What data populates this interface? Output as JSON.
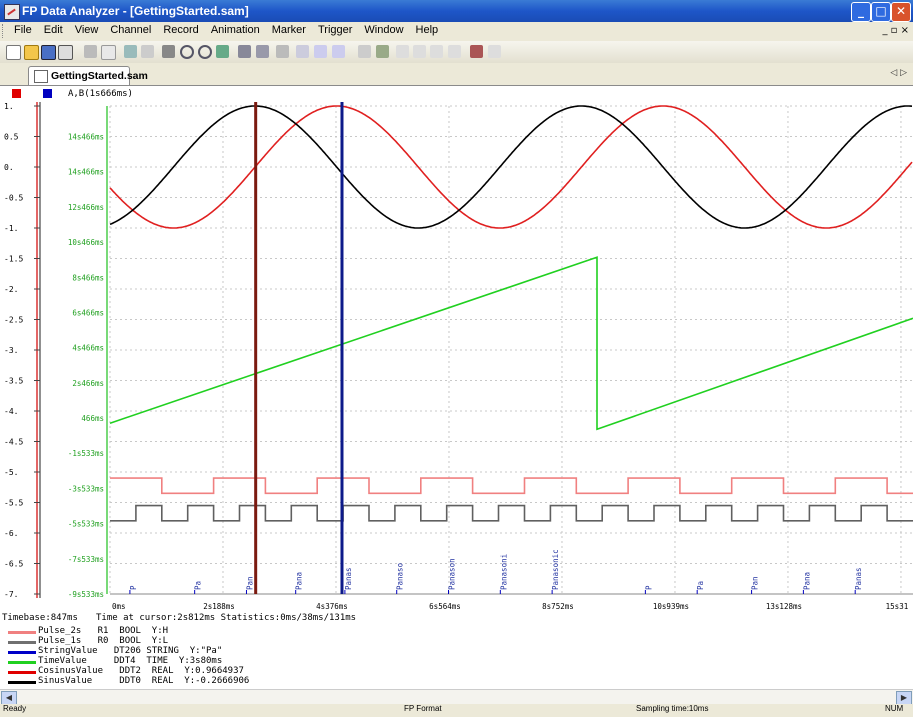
{
  "window": {
    "title": "FP Data Analyzer - [GettingStarted.sam]",
    "minimize": "_",
    "maximize": "□",
    "close": "✕"
  },
  "menu": {
    "items": [
      "File",
      "Edit",
      "View",
      "Channel",
      "Record",
      "Animation",
      "Marker",
      "Trigger",
      "Window",
      "Help"
    ],
    "mdi_controls": "_ ▫ ×"
  },
  "tab": {
    "label": "GettingStarted.sam",
    "nav": "◁ ▷"
  },
  "legend_top": {
    "label": "A,B(1s666ms)",
    "colors": [
      "#e00000",
      "#0000c0"
    ]
  },
  "chart_data": {
    "type": "line",
    "left_axis_ticks": [
      "1.",
      "0.5",
      "0.",
      "-0.5",
      "-1.",
      "-1.5",
      "-2.",
      "-2.5",
      "-3.",
      "-3.5",
      "-4.",
      "-4.5",
      "-5.",
      "-5.5",
      "-6.",
      "-6.5",
      "-7."
    ],
    "left_axis_range": [
      -7,
      1
    ],
    "time_axis_ticks": [
      "14s466ms",
      "14s466ms",
      "12s466ms",
      "10s466ms",
      "8s466ms",
      "6s466ms",
      "4s466ms",
      "2s466ms",
      "466ms",
      "-1s533ms",
      "-3s533ms",
      "-5s533ms",
      "-7s533ms",
      "-9s533ms"
    ],
    "x_ticks": [
      "0ms",
      "2s188ms",
      "4s376ms",
      "6s564ms",
      "8s752ms",
      "10s939ms",
      "13s128ms",
      "15s31"
    ],
    "x_range_ms": [
      0,
      15500
    ],
    "series": [
      {
        "name": "CosinusValue",
        "color": "#e02020",
        "kind": "sine",
        "amplitude": 1,
        "period_ms": 6300,
        "phase_deg": 110
      },
      {
        "name": "SinusValue",
        "color": "#000000",
        "kind": "sine",
        "amplitude": 1,
        "period_ms": 6300,
        "phase_deg": 200
      },
      {
        "name": "TimeValue",
        "color": "#20d020",
        "kind": "sawtooth",
        "points": [
          [
            0,
            -4.2
          ],
          [
            9400,
            -1.48
          ],
          [
            9400,
            -4.3
          ],
          [
            15500,
            -2.48
          ]
        ]
      },
      {
        "name": "Pulse_2s",
        "color": "#f08080",
        "kind": "pulse",
        "period_ms": 2000,
        "high": -5.1,
        "low": -5.35,
        "start_high": true
      },
      {
        "name": "Pulse_1s",
        "color": "#606060",
        "kind": "pulse",
        "period_ms": 1000,
        "high": -5.55,
        "low": -5.8,
        "start_high": false
      }
    ],
    "string_labels": [
      {
        "t_ms": 500,
        "text": "P"
      },
      {
        "t_ms": 1750,
        "text": "Pa"
      },
      {
        "t_ms": 2750,
        "text": "Pan"
      },
      {
        "t_ms": 3700,
        "text": "Pana"
      },
      {
        "t_ms": 4650,
        "text": "Panas"
      },
      {
        "t_ms": 5650,
        "text": "Panaso"
      },
      {
        "t_ms": 6650,
        "text": "Panason"
      },
      {
        "t_ms": 7650,
        "text": "Panasoni"
      },
      {
        "t_ms": 8650,
        "text": "Panasonic"
      },
      {
        "t_ms": 10450,
        "text": "P"
      },
      {
        "t_ms": 11450,
        "text": "Pa"
      },
      {
        "t_ms": 12500,
        "text": "Pan"
      },
      {
        "t_ms": 13500,
        "text": "Pana"
      },
      {
        "t_ms": 14500,
        "text": "Panas"
      }
    ],
    "cursors": [
      {
        "name": "A",
        "t_ms": 2812,
        "color": "#7b1a10"
      },
      {
        "name": "B",
        "t_ms": 4478,
        "color": "#0d1a8a"
      }
    ],
    "grid": true
  },
  "status_line": {
    "timebase": "Timebase:847ms",
    "cursor_info": "Time at cursor:2s812ms Statistics:0ms/38ms/131ms"
  },
  "signals": [
    {
      "name": "Pulse_2s",
      "info": "R1  BOOL  Y:H",
      "color": "#f08080"
    },
    {
      "name": "Pulse_1s",
      "info": "R0  BOOL  Y:L",
      "color": "#707070"
    },
    {
      "name": "StringValue",
      "info": "DT206 STRING  Y:\"Pa\"",
      "color": "#0000c8"
    },
    {
      "name": "TimeValue",
      "info": "DDT4  TIME  Y:3s80ms",
      "color": "#20d020"
    },
    {
      "name": "CosinusValue",
      "info": "DDT2  REAL  Y:0.9664937",
      "color": "#e00000"
    },
    {
      "name": "SinusValue",
      "info": "DDT0  REAL  Y:-0.2666906",
      "color": "#000000"
    }
  ],
  "statusbar": {
    "ready": "Ready",
    "format": "FP Format",
    "sampling": "Sampling time:10ms",
    "num": "NUM"
  }
}
